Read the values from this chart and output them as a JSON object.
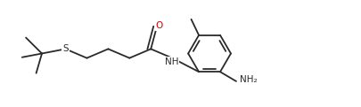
{
  "bg_color": "#ffffff",
  "line_color": "#2a2a2a",
  "atom_colors": {
    "O": "#cc0000",
    "S": "#2a2a2a",
    "NH": "#2a2a2a",
    "NH2": "#2a2a2a"
  },
  "figsize": [
    4.06,
    1.21
  ],
  "dpi": 100,
  "xlim": [
    0.0,
    9.5
  ],
  "ylim": [
    0.2,
    2.8
  ]
}
